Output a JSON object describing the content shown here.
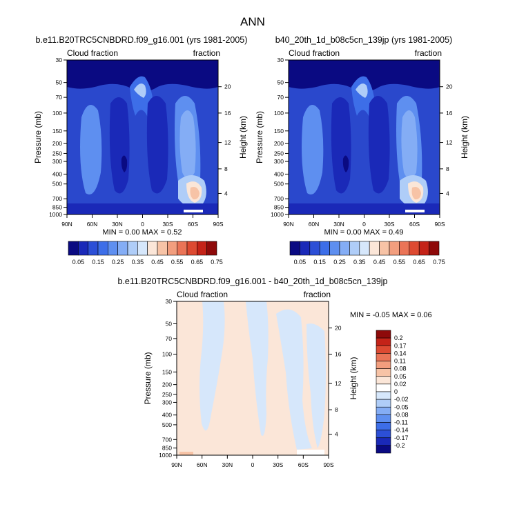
{
  "page_title": "ANN",
  "panels": [
    {
      "title": "b.e11.B20TRC5CNBDRD.f09_g16.001 (yrs 1981-2005)",
      "left_label": "Cloud fraction",
      "right_label": "fraction",
      "min_max": "MIN =  0.00  MAX =  0.52"
    },
    {
      "title": "b40_20th_1d_b08c5cn_139jp (yrs 1981-2005)",
      "left_label": "Cloud fraction",
      "right_label": "fraction",
      "min_max": "MIN =  0.00  MAX =  0.49"
    },
    {
      "title": "b.e11.B20TRC5CNBDRD.f09_g16.001 - b40_20th_1d_b08c5cn_139jp",
      "left_label": "Cloud fraction",
      "right_label": "fraction",
      "min_max": "MIN = -0.05  MAX =   0.06"
    }
  ],
  "axes": {
    "ylabel": "Pressure (mb)",
    "ylabel_right": "Height (km)",
    "pressure_ticks": [
      "30",
      "50",
      "70",
      "100",
      "150",
      "200",
      "250",
      "300",
      "400",
      "500",
      "700",
      "850",
      "1000"
    ],
    "height_ticks": [
      "20",
      "16",
      "12",
      "8",
      "4"
    ],
    "lat_ticks": [
      "90N",
      "60N",
      "30N",
      "0",
      "30S",
      "60S",
      "90S"
    ]
  },
  "colorbar_abs": {
    "labels": [
      "0.05",
      "0.15",
      "0.25",
      "0.35",
      "0.45",
      "0.55",
      "0.65",
      "0.75"
    ],
    "colors": [
      "#0a0a82",
      "#1a29b8",
      "#2c4fd6",
      "#3d6ee8",
      "#5e8ff0",
      "#84adf5",
      "#afcdf8",
      "#d6e7fb",
      "#fbe6d8",
      "#f7c3a6",
      "#f29e7e",
      "#ea7457",
      "#dd4a32",
      "#c42318",
      "#8e0a0a"
    ]
  },
  "colorbar_diff": {
    "labels": [
      "0.2",
      "0.17",
      "0.14",
      "0.11",
      "0.08",
      "0.05",
      "0.02",
      "0",
      "-0.02",
      "-0.05",
      "-0.08",
      "-0.11",
      "-0.14",
      "-0.17",
      "-0.2"
    ],
    "colors": [
      "#8e0a0a",
      "#c42318",
      "#dd4a32",
      "#ea7457",
      "#f29e7e",
      "#f7c3a6",
      "#fbe6d8",
      "#ffffff",
      "#d6e7fb",
      "#afcdf8",
      "#84adf5",
      "#5e8ff0",
      "#3d6ee8",
      "#2c4fd6",
      "#1a29b8",
      "#0a0a82"
    ]
  },
  "chart_data": [
    {
      "type": "heatmap",
      "title": "b.e11.B20TRC5CNBDRD.f09_g16.001 (yrs 1981-2005)",
      "xlabel": "",
      "ylabel": "Pressure (mb)",
      "x_categories": [
        "90N",
        "60N",
        "30N",
        "0",
        "30S",
        "60S",
        "90S"
      ],
      "y_categories": [
        "30",
        "50",
        "70",
        "100",
        "150",
        "200",
        "250",
        "300",
        "400",
        "500",
        "700",
        "850",
        "1000"
      ],
      "min": 0.0,
      "max": 0.52,
      "levels": [
        0.05,
        0.1,
        0.15,
        0.2,
        0.25,
        0.3,
        0.35,
        0.4,
        0.45,
        0.5,
        0.55,
        0.6,
        0.65,
        0.7,
        0.75
      ]
    },
    {
      "type": "heatmap",
      "title": "b40_20th_1d_b08c5cn_139jp (yrs 1981-2005)",
      "xlabel": "",
      "ylabel": "Pressure (mb)",
      "x_categories": [
        "90N",
        "60N",
        "30N",
        "0",
        "30S",
        "60S",
        "90S"
      ],
      "y_categories": [
        "30",
        "50",
        "70",
        "100",
        "150",
        "200",
        "250",
        "300",
        "400",
        "500",
        "700",
        "850",
        "1000"
      ],
      "min": 0.0,
      "max": 0.49,
      "levels": [
        0.05,
        0.1,
        0.15,
        0.2,
        0.25,
        0.3,
        0.35,
        0.4,
        0.45,
        0.5,
        0.55,
        0.6,
        0.65,
        0.7,
        0.75
      ]
    },
    {
      "type": "heatmap",
      "title": "b.e11.B20TRC5CNBDRD.f09_g16.001 - b40_20th_1d_b08c5cn_139jp",
      "xlabel": "",
      "ylabel": "Pressure (mb)",
      "x_categories": [
        "90N",
        "60N",
        "30N",
        "0",
        "30S",
        "60S",
        "90S"
      ],
      "y_categories": [
        "30",
        "50",
        "70",
        "100",
        "150",
        "200",
        "250",
        "300",
        "400",
        "500",
        "700",
        "850",
        "1000"
      ],
      "min": -0.05,
      "max": 0.06,
      "levels": [
        -0.2,
        -0.17,
        -0.14,
        -0.11,
        -0.08,
        -0.05,
        -0.02,
        0,
        0.02,
        0.05,
        0.08,
        0.11,
        0.14,
        0.17,
        0.2
      ]
    }
  ]
}
